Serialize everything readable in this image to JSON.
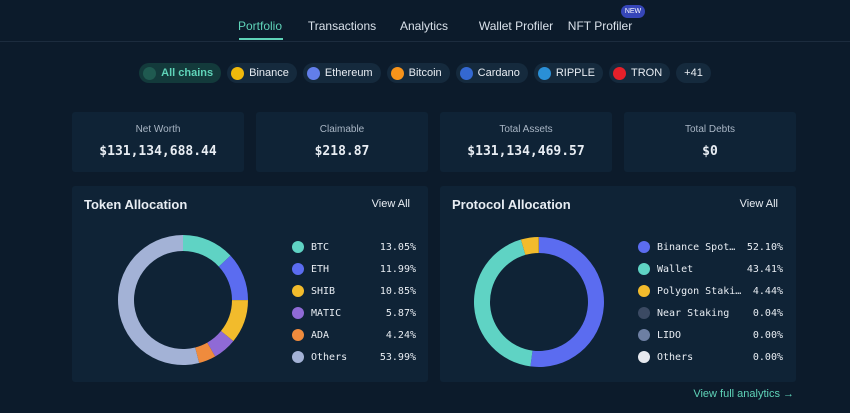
{
  "nav": {
    "items": [
      "Portfolio",
      "Transactions",
      "Analytics",
      "Wallet Profiler",
      "NFT Profiler"
    ],
    "badge": "NEW"
  },
  "chains": [
    "All chains",
    "Binance",
    "Ethereum",
    "Bitcoin",
    "Cardano",
    "RIPPLE",
    "TRON",
    "+41"
  ],
  "stats": [
    {
      "label": "Net Worth",
      "value": "$131,134,688.44"
    },
    {
      "label": "Claimable",
      "value": "$218.87"
    },
    {
      "label": "Total Assets",
      "value": "$131,134,469.57"
    },
    {
      "label": "Total Debts",
      "value": "$0"
    }
  ],
  "panel_links": [
    "View All",
    "View All"
  ],
  "footer_link": "View full analytics →",
  "chart_data": [
    {
      "type": "pie",
      "title": "Token Allocation",
      "categories": [
        "BTC",
        "ETH",
        "SHIB",
        "MATIC",
        "ADA",
        "Others"
      ],
      "values": [
        13.05,
        11.99,
        10.85,
        5.87,
        4.24,
        53.99
      ],
      "value_labels": [
        "13.05%",
        "11.99%",
        "10.85%",
        "5.87%",
        "4.24%",
        "53.99%"
      ],
      "colors": [
        "#5fd3c4",
        "#5b6cf0",
        "#f2bb2c",
        "#8f6ad6",
        "#ef8b3d",
        "#a3b2d6"
      ]
    },
    {
      "type": "pie",
      "title": "Protocol Allocation",
      "categories": [
        "Binance Spot…",
        "Wallet",
        "Polygon Staki…",
        "Near Staking",
        "LIDO",
        "Others"
      ],
      "values": [
        52.1,
        43.41,
        4.44,
        0.04,
        0.0,
        0.0
      ],
      "value_labels": [
        "52.10%",
        "43.41%",
        "4.44%",
        "0.04%",
        "0.00%",
        "0.00%"
      ],
      "colors": [
        "#5b6cf0",
        "#5fd3c4",
        "#f2bb2c",
        "#3b4a63",
        "#6d7fa3",
        "#e6e9ef"
      ]
    }
  ]
}
